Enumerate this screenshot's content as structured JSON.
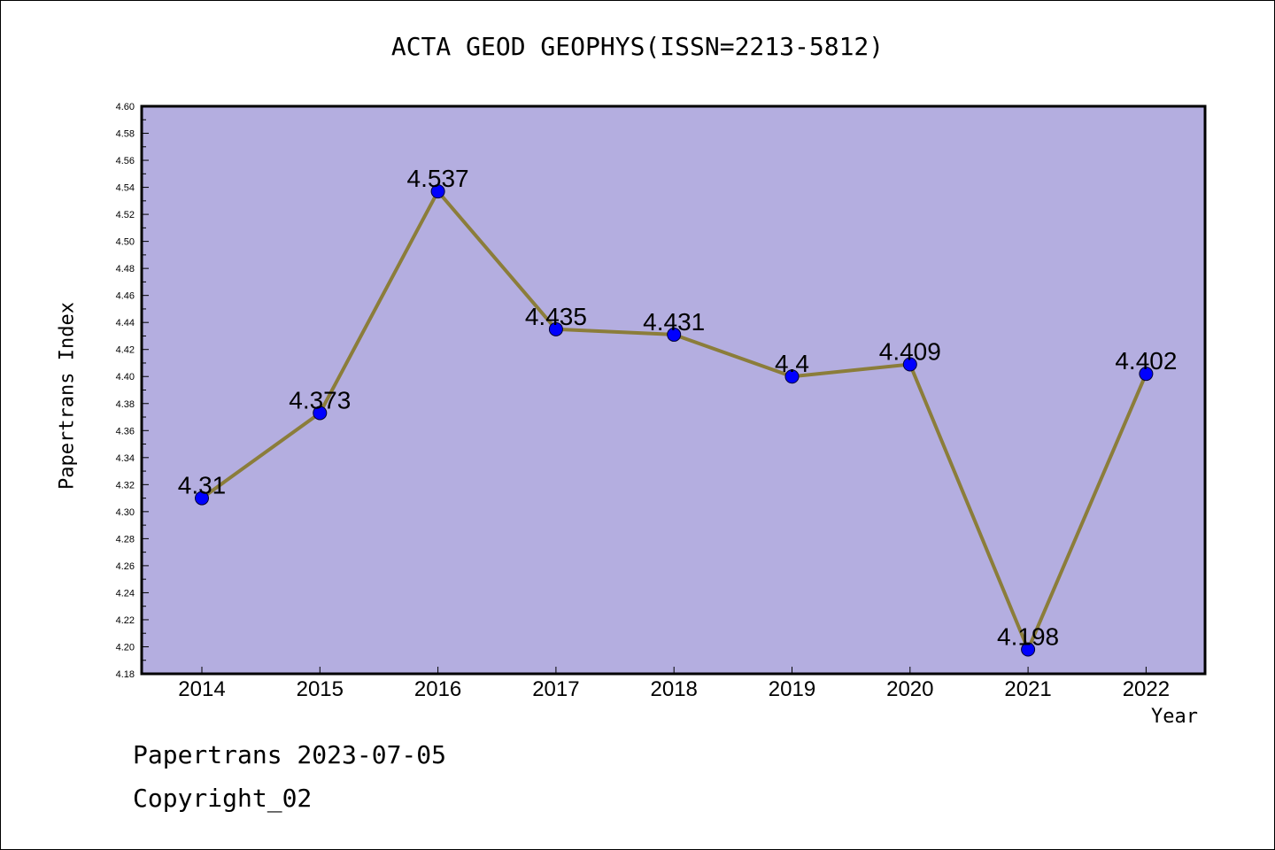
{
  "title": "ACTA GEOD GEOPHYS(ISSN=2213-5812)",
  "footer": {
    "line1": "Papertrans 2023-07-05",
    "line2": "Copyright_02"
  },
  "colors": {
    "plot_bg": "#b4aee0",
    "line": "#8b7d3a",
    "marker": "#0000ff",
    "axis": "#000000"
  },
  "chart_data": {
    "type": "line",
    "title": "ACTA GEOD GEOPHYS(ISSN=2213-5812)",
    "xlabel": "Year",
    "ylabel": "Papertrans Index",
    "categories": [
      "2014",
      "2015",
      "2016",
      "2017",
      "2018",
      "2019",
      "2020",
      "2021",
      "2022"
    ],
    "values": [
      4.31,
      4.373,
      4.537,
      4.435,
      4.431,
      4.4,
      4.409,
      4.198,
      4.402
    ],
    "data_labels": [
      "4.31",
      "4.373",
      "4.537",
      "4.435",
      "4.431",
      "4.4",
      "4.409",
      "4.198",
      "4.402"
    ],
    "ylim": [
      4.18,
      4.6
    ],
    "yticks": [
      "4.18",
      "4.20",
      "4.22",
      "4.24",
      "4.26",
      "4.28",
      "4.30",
      "4.32",
      "4.34",
      "4.36",
      "4.38",
      "4.40",
      "4.42",
      "4.44",
      "4.46",
      "4.48",
      "4.50",
      "4.52",
      "4.54",
      "4.56",
      "4.58",
      "4.60"
    ],
    "grid": false,
    "legend": "none"
  }
}
